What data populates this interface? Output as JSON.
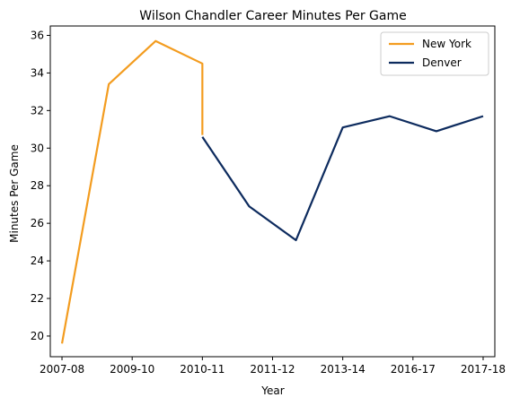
{
  "chart_data": {
    "type": "line",
    "title": "Wilson Chandler Career Minutes Per Game",
    "xlabel": "Year",
    "ylabel": "Minutes Per Game",
    "x_ticks": [
      "2007-08",
      "2009-10",
      "2010-11",
      "2011-12",
      "2013-14",
      "2016-17",
      "2017-18"
    ],
    "x_range": [
      -0.25,
      9.25
    ],
    "ylim": [
      18.9,
      36.5
    ],
    "y_ticks": [
      20,
      22,
      24,
      26,
      28,
      30,
      32,
      34,
      36
    ],
    "grid": false,
    "legend": "top-right",
    "series": [
      {
        "name": "New York",
        "color": "#f39c1f",
        "points": [
          {
            "x": 0,
            "y": 19.6
          },
          {
            "x": 1,
            "y": 33.4
          },
          {
            "x": 2,
            "y": 35.7
          },
          {
            "x": 3,
            "y": 34.5
          },
          {
            "x": 3,
            "y": 30.7
          }
        ]
      },
      {
        "name": "Denver",
        "color": "#0d2b5e",
        "points": [
          {
            "x": 3,
            "y": 30.6
          },
          {
            "x": 4,
            "y": 26.9
          },
          {
            "x": 5,
            "y": 25.1
          },
          {
            "x": 6,
            "y": 31.1
          },
          {
            "x": 7,
            "y": 31.7
          },
          {
            "x": 8,
            "y": 30.9
          },
          {
            "x": 9,
            "y": 31.7
          }
        ]
      }
    ]
  }
}
